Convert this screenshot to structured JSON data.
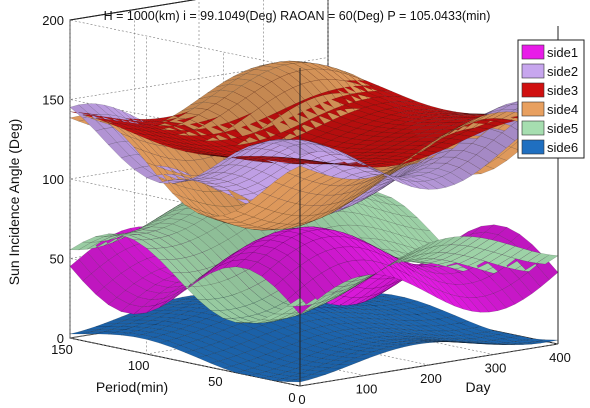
{
  "chart_data": {
    "type": "surface3d",
    "title": "H = 1000(km)  i = 99.1049(Deg)  RAOAN = 60(Deg)  P = 105.0433(min)",
    "xlabel": "Day",
    "ylabel": "Period(min)",
    "zlabel": "Sun Incidence Angle (Deg)",
    "xlim": [
      0,
      400
    ],
    "ylim": [
      0,
      150
    ],
    "zlim": [
      0,
      200
    ],
    "xticks": [
      "0",
      "100",
      "200",
      "300",
      "400"
    ],
    "yticks": [
      "0",
      "50",
      "100",
      "150"
    ],
    "zticks": [
      "0",
      "50",
      "100",
      "150",
      "200"
    ],
    "grid": true,
    "legend_position": "top-right",
    "series": [
      {
        "name": "side1",
        "color": "#e81be8",
        "mean": 45,
        "day_amp": 18,
        "period_amp": 22,
        "phase": 0.0
      },
      {
        "name": "side2",
        "color": "#c7a6ee",
        "mean": 112,
        "day_amp": 18,
        "period_amp": 20,
        "phase": 1.3
      },
      {
        "name": "side3",
        "color": "#d01010",
        "mean": 132,
        "day_amp": 8,
        "period_amp": 5,
        "phase": 2.4
      },
      {
        "name": "side4",
        "color": "#e8a060",
        "mean": 118,
        "day_amp": 14,
        "period_amp": 24,
        "phase": 3.1
      },
      {
        "name": "side5",
        "color": "#a6deb0",
        "mean": 62,
        "day_amp": 12,
        "period_amp": 20,
        "phase": 4.2
      },
      {
        "name": "side6",
        "color": "#1f6fc0",
        "mean": 10,
        "day_amp": 6,
        "period_amp": 5,
        "phase": 5.0
      }
    ]
  }
}
